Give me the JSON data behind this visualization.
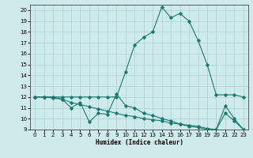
{
  "xlabel": "Humidex (Indice chaleur)",
  "background_color": "#ceeaea",
  "grid_color": "#afd4d4",
  "line_color": "#1a7a6e",
  "xlim": [
    -0.5,
    23.5
  ],
  "ylim": [
    9,
    20.5
  ],
  "yticks": [
    9,
    10,
    11,
    12,
    13,
    14,
    15,
    16,
    17,
    18,
    19,
    20
  ],
  "xticks": [
    0,
    1,
    2,
    3,
    4,
    5,
    6,
    7,
    8,
    9,
    10,
    11,
    12,
    13,
    14,
    15,
    16,
    17,
    18,
    19,
    20,
    21,
    22,
    23
  ],
  "line1_x": [
    0,
    1,
    2,
    3,
    4,
    5,
    6,
    7,
    8,
    9,
    10,
    11,
    12,
    13,
    14,
    15,
    16,
    17,
    18,
    19,
    20,
    21,
    22,
    23
  ],
  "line1_y": [
    12.0,
    12.0,
    12.0,
    11.8,
    11.0,
    11.5,
    9.7,
    10.5,
    10.4,
    12.3,
    11.2,
    11.0,
    10.5,
    10.3,
    10.0,
    9.8,
    9.5,
    9.3,
    9.2,
    9.0,
    9.0,
    11.2,
    10.0,
    9.0
  ],
  "line2_x": [
    0,
    1,
    2,
    3,
    4,
    5,
    6,
    7,
    8,
    9,
    10,
    11,
    12,
    13,
    14,
    15,
    16,
    17,
    18,
    19,
    20,
    21,
    22,
    23
  ],
  "line2_y": [
    12.0,
    12.0,
    12.0,
    12.0,
    12.0,
    12.0,
    12.0,
    12.0,
    12.0,
    12.0,
    14.3,
    16.8,
    17.5,
    18.0,
    20.3,
    19.3,
    19.7,
    19.0,
    17.2,
    15.0,
    12.2,
    12.2,
    12.2,
    12.0
  ],
  "line3_x": [
    0,
    1,
    2,
    3,
    4,
    5,
    6,
    7,
    8,
    9,
    10,
    11,
    12,
    13,
    14,
    15,
    16,
    17,
    18,
    19,
    20,
    21,
    22,
    23
  ],
  "line3_y": [
    12.0,
    12.0,
    11.9,
    11.8,
    11.5,
    11.3,
    11.1,
    10.9,
    10.7,
    10.5,
    10.3,
    10.2,
    10.0,
    9.9,
    9.8,
    9.6,
    9.5,
    9.4,
    9.3,
    9.1,
    9.0,
    10.5,
    9.8,
    9.0
  ]
}
